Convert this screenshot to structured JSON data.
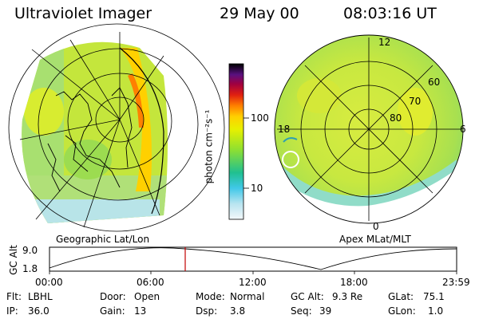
{
  "header": {
    "title": "Ultraviolet Imager",
    "date": "29 May 00",
    "time": "08:03:16 UT"
  },
  "colorbar": {
    "unit_label": "photon cm⁻²s⁻¹",
    "ticks": [
      "100",
      "10"
    ],
    "colors": [
      "#000000",
      "#3a1060",
      "#7a1080",
      "#c00020",
      "#e03000",
      "#ff8000",
      "#ffd000",
      "#e8f000",
      "#a8e020",
      "#50d040",
      "#20c0a0",
      "#40c8e8",
      "#a8e0f0",
      "#e8f4f8"
    ]
  },
  "geo_map": {
    "label": "Geographic Lat/Lon"
  },
  "polar_map": {
    "label": "Apex MLat/MLT",
    "mlt_labels": [
      "12",
      "18",
      "6",
      "0"
    ],
    "lat_labels": [
      "60",
      "70",
      "80"
    ]
  },
  "timeline": {
    "ylabel": "GC Alt",
    "y_ticks": [
      "9.0",
      "1.8"
    ],
    "x_ticks": [
      "00:00",
      "06:00",
      "12:00",
      "18:00",
      "23:59"
    ],
    "current_marker": "08:03"
  },
  "info": {
    "row1": {
      "flt_label": "Flt:",
      "flt_value": "LBHL",
      "door_label": "Door:",
      "door_value": "Open",
      "mode_label": "Mode:",
      "mode_value": "Normal",
      "gcalt_label": "GC Alt:",
      "gcalt_value": "9.3 Re",
      "glat_label": "GLat:",
      "glat_value": "75.1"
    },
    "row2": {
      "ip_label": "IP:",
      "ip_value": "36.0",
      "gain_label": "Gain:",
      "gain_value": "13",
      "dsp_label": "Dsp:",
      "dsp_value": "3.8",
      "seq_label": "Seq:",
      "seq_value": "39",
      "glon_label": "GLon:",
      "glon_value": "1.0"
    }
  }
}
